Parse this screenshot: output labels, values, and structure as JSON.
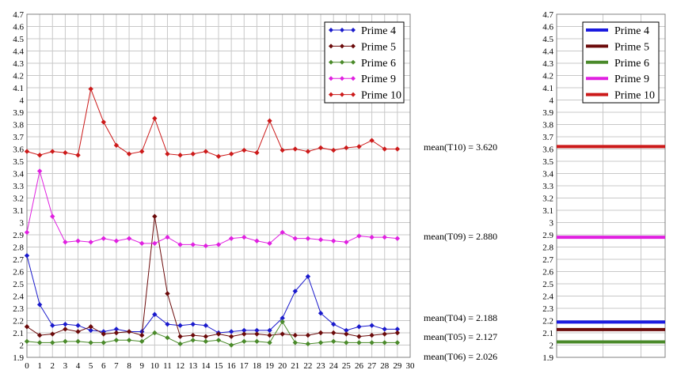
{
  "chart_data": [
    {
      "type": "line",
      "x": [
        0,
        1,
        2,
        3,
        4,
        5,
        6,
        7,
        8,
        9,
        10,
        11,
        12,
        13,
        14,
        15,
        16,
        17,
        18,
        19,
        20,
        21,
        22,
        23,
        24,
        25,
        26,
        27,
        28,
        29
      ],
      "xlim": [
        0,
        30
      ],
      "ylim": [
        1.9,
        4.7
      ],
      "x_ticks": [
        "0",
        "1",
        "2",
        "3",
        "4",
        "5",
        "6",
        "7",
        "8",
        "9",
        "10",
        "11",
        "12",
        "13",
        "14",
        "15",
        "16",
        "17",
        "18",
        "19",
        "20",
        "21",
        "22",
        "23",
        "24",
        "25",
        "26",
        "27",
        "28",
        "29",
        "30"
      ],
      "y_ticks": [
        "1.9",
        "2",
        "2.1",
        "2.2",
        "2.3",
        "2.4",
        "2.5",
        "2.6",
        "2.7",
        "2.8",
        "2.9",
        "3",
        "3.1",
        "3.2",
        "3.3",
        "3.4",
        "3.5",
        "3.6",
        "3.7",
        "3.8",
        "3.9",
        "4",
        "4.1",
        "4.2",
        "4.3",
        "4.4",
        "4.5",
        "4.6",
        "4.7"
      ],
      "grid": true,
      "legend_position": "top-right",
      "series": [
        {
          "name": "Prime  4",
          "color": "#1a1acc",
          "values": [
            2.73,
            2.33,
            2.16,
            2.17,
            2.16,
            2.12,
            2.11,
            2.13,
            2.11,
            2.11,
            2.25,
            2.17,
            2.16,
            2.17,
            2.16,
            2.1,
            2.11,
            2.12,
            2.12,
            2.12,
            2.22,
            2.44,
            2.56,
            2.26,
            2.17,
            2.12,
            2.15,
            2.16,
            2.13,
            2.13
          ]
        },
        {
          "name": "Prime  5",
          "color": "#6b0a0a",
          "values": [
            2.15,
            2.08,
            2.09,
            2.13,
            2.11,
            2.15,
            2.09,
            2.1,
            2.11,
            2.08,
            3.05,
            2.42,
            2.07,
            2.08,
            2.07,
            2.09,
            2.07,
            2.09,
            2.09,
            2.08,
            2.09,
            2.08,
            2.08,
            2.1,
            2.1,
            2.09,
            2.07,
            2.08,
            2.09,
            2.1
          ]
        },
        {
          "name": "Prime  6",
          "color": "#4a8a2a",
          "values": [
            2.03,
            2.02,
            2.02,
            2.03,
            2.03,
            2.02,
            2.02,
            2.04,
            2.04,
            2.03,
            2.1,
            2.06,
            2.01,
            2.04,
            2.03,
            2.04,
            2.0,
            2.03,
            2.03,
            2.02,
            2.19,
            2.02,
            2.01,
            2.02,
            2.03,
            2.02,
            2.02,
            2.02,
            2.02,
            2.02
          ]
        },
        {
          "name": "Prime  9",
          "color": "#e020e0",
          "values": [
            2.92,
            3.42,
            3.05,
            2.84,
            2.85,
            2.84,
            2.87,
            2.85,
            2.87,
            2.83,
            2.83,
            2.88,
            2.82,
            2.82,
            2.81,
            2.82,
            2.87,
            2.88,
            2.85,
            2.83,
            2.92,
            2.87,
            2.87,
            2.86,
            2.85,
            2.84,
            2.89,
            2.88,
            2.88,
            2.87
          ]
        },
        {
          "name": "Prime 10",
          "color": "#cc1a1a",
          "values": [
            3.58,
            3.55,
            3.58,
            3.57,
            3.55,
            4.09,
            3.82,
            3.63,
            3.56,
            3.58,
            3.85,
            3.56,
            3.55,
            3.56,
            3.58,
            3.54,
            3.56,
            3.59,
            3.57,
            3.83,
            3.59,
            3.6,
            3.58,
            3.61,
            3.59,
            3.61,
            3.62,
            3.67,
            3.6,
            3.6
          ]
        }
      ],
      "mean_labels": [
        {
          "text": "mean(T10) = 3.620",
          "value": 3.62
        },
        {
          "text": "mean(T09) = 2.880",
          "value": 2.88
        },
        {
          "text": "mean(T04) = 2.188",
          "value": 2.188
        },
        {
          "text": "mean(T05) = 2.127",
          "value": 2.127
        },
        {
          "text": "mean(T06) = 2.026",
          "value": 2.026
        }
      ]
    },
    {
      "type": "line",
      "ylim": [
        1.9,
        4.7
      ],
      "y_ticks": [
        "1.9",
        "2",
        "2.1",
        "2.2",
        "2.3",
        "2.4",
        "2.5",
        "2.6",
        "2.7",
        "2.8",
        "2.9",
        "3",
        "3.1",
        "3.2",
        "3.3",
        "3.4",
        "3.5",
        "3.6",
        "3.7",
        "3.8",
        "3.9",
        "4",
        "4.1",
        "4.2",
        "4.3",
        "4.4",
        "4.5",
        "4.6",
        "4.7"
      ],
      "grid": true,
      "legend_position": "top-right",
      "series": [
        {
          "name": "Prime  4",
          "color": "#1a1ae0",
          "value": 2.188
        },
        {
          "name": "Prime  5",
          "color": "#6b0a0a",
          "value": 2.127
        },
        {
          "name": "Prime  6",
          "color": "#4a8a2a",
          "value": 2.026
        },
        {
          "name": "Prime  9",
          "color": "#e020e0",
          "value": 2.88
        },
        {
          "name": "Prime 10",
          "color": "#cc1a1a",
          "value": 3.62
        }
      ]
    }
  ]
}
